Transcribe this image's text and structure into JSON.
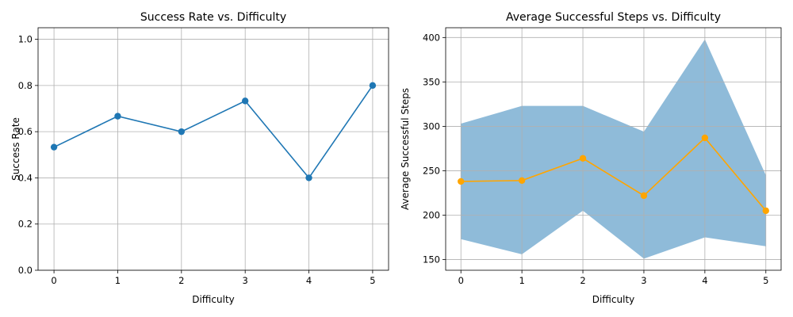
{
  "chart_data": [
    {
      "type": "line",
      "title": "Success Rate vs. Difficulty",
      "xlabel": "Difficulty",
      "ylabel": "Success Rate",
      "x": [
        0,
        1,
        2,
        3,
        4,
        5
      ],
      "xticks": [
        "0",
        "1",
        "2",
        "3",
        "4",
        "5"
      ],
      "yticks": [
        "0.0",
        "0.2",
        "0.4",
        "0.6",
        "0.8",
        "1.0"
      ],
      "xlim": [
        -0.25,
        5.25
      ],
      "ylim": [
        0,
        1.05
      ],
      "grid": true,
      "series": [
        {
          "values": [
            0.533,
            0.667,
            0.6,
            0.733,
            0.4,
            0.8
          ],
          "color": "#1f77b4",
          "marker": "circle"
        }
      ]
    },
    {
      "type": "line",
      "title": "Average Successful Steps vs. Difficulty",
      "xlabel": "Difficulty",
      "ylabel": "Average Successful Steps",
      "x": [
        0,
        1,
        2,
        3,
        4,
        5
      ],
      "xticks": [
        "0",
        "1",
        "2",
        "3",
        "4",
        "5"
      ],
      "yticks": [
        "150",
        "200",
        "250",
        "300",
        "350",
        "400"
      ],
      "xlim": [
        -0.25,
        5.25
      ],
      "ylim": [
        138,
        411
      ],
      "grid": true,
      "series": [
        {
          "values": [
            238,
            239,
            264,
            222,
            287,
            205
          ],
          "color": "#ffa500",
          "marker": "circle"
        }
      ],
      "band": {
        "lower": [
          173,
          156,
          205,
          151,
          175,
          165
        ],
        "upper": [
          303,
          323,
          323,
          294,
          398,
          245
        ],
        "color": "#1f77b4",
        "opacity": 0.5
      }
    }
  ]
}
